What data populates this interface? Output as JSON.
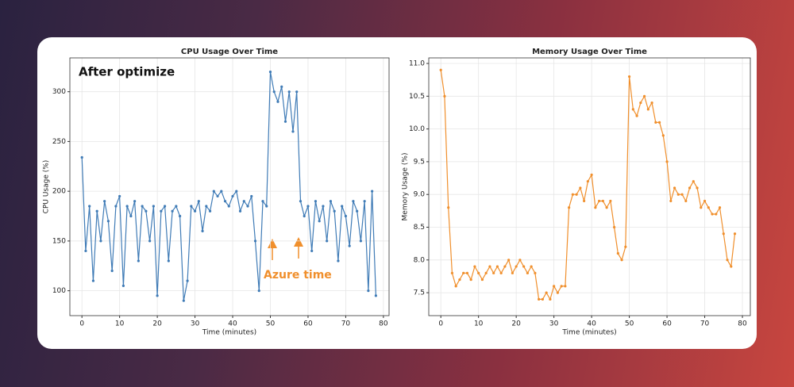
{
  "chart_data": [
    {
      "type": "line",
      "title": "CPU Usage Over Time",
      "x_label": "Time (minutes)",
      "y_label": "CPU Usage (%)",
      "annotations": [
        "After optimize",
        "Azure time"
      ],
      "x": [
        0,
        1,
        2,
        3,
        4,
        5,
        6,
        7,
        8,
        9,
        10,
        11,
        12,
        13,
        14,
        15,
        16,
        17,
        18,
        19,
        20,
        21,
        22,
        23,
        24,
        25,
        26,
        27,
        28,
        29,
        30,
        31,
        32,
        33,
        34,
        35,
        36,
        37,
        38,
        39,
        40,
        41,
        42,
        43,
        44,
        45,
        46,
        47,
        48,
        49,
        50,
        51,
        52,
        53,
        54,
        55,
        56,
        57,
        58,
        59,
        60,
        61,
        62,
        63,
        64,
        65,
        66,
        67,
        68,
        69,
        70,
        71,
        72,
        73,
        74,
        75,
        76,
        77,
        78
      ],
      "series": [
        {
          "name": "CPU Usage (%)",
          "color": "#3f7bb6",
          "values": [
            234,
            140,
            185,
            110,
            180,
            150,
            190,
            170,
            120,
            185,
            195,
            105,
            185,
            175,
            190,
            130,
            185,
            180,
            150,
            185,
            95,
            180,
            185,
            130,
            180,
            185,
            175,
            90,
            110,
            185,
            180,
            190,
            160,
            185,
            180,
            200,
            195,
            200,
            190,
            185,
            195,
            200,
            180,
            190,
            185,
            195,
            150,
            100,
            190,
            185,
            320,
            300,
            290,
            305,
            270,
            300,
            260,
            300,
            190,
            175,
            185,
            140,
            190,
            170,
            185,
            150,
            190,
            180,
            130,
            185,
            175,
            145,
            190,
            180,
            150,
            190,
            100,
            200,
            95
          ]
        }
      ],
      "xlim": [
        -3.2,
        81.5
      ],
      "ylim": [
        75,
        334
      ],
      "xticks": [
        0,
        10,
        20,
        30,
        40,
        50,
        60,
        70,
        80
      ],
      "yticks": [
        100,
        150,
        200,
        250,
        300
      ],
      "grid": true
    },
    {
      "type": "line",
      "title": "Memory Usage Over Time",
      "x_label": "Time (minutes)",
      "y_label": "Memory Usage (%)",
      "x": [
        0,
        1,
        2,
        3,
        4,
        5,
        6,
        7,
        8,
        9,
        10,
        11,
        12,
        13,
        14,
        15,
        16,
        17,
        18,
        19,
        20,
        21,
        22,
        23,
        24,
        25,
        26,
        27,
        28,
        29,
        30,
        31,
        32,
        33,
        34,
        35,
        36,
        37,
        38,
        39,
        40,
        41,
        42,
        43,
        44,
        45,
        46,
        47,
        48,
        49,
        50,
        51,
        52,
        53,
        54,
        55,
        56,
        57,
        58,
        59,
        60,
        61,
        62,
        63,
        64,
        65,
        66,
        67,
        68,
        69,
        70,
        71,
        72,
        73,
        74,
        75,
        76,
        77,
        78
      ],
      "series": [
        {
          "name": "Memory Usage (%)",
          "color": "#f08f2c",
          "values": [
            10.9,
            10.5,
            8.8,
            7.8,
            7.6,
            7.7,
            7.8,
            7.8,
            7.7,
            7.9,
            7.8,
            7.7,
            7.8,
            7.9,
            7.8,
            7.9,
            7.8,
            7.9,
            8.0,
            7.8,
            7.9,
            8.0,
            7.9,
            7.8,
            7.9,
            7.8,
            7.4,
            7.4,
            7.5,
            7.4,
            7.6,
            7.5,
            7.6,
            7.6,
            8.8,
            9.0,
            9.0,
            9.1,
            8.9,
            9.2,
            9.3,
            8.8,
            8.9,
            8.9,
            8.8,
            8.9,
            8.5,
            8.1,
            8.0,
            8.2,
            10.8,
            10.3,
            10.2,
            10.4,
            10.5,
            10.3,
            10.4,
            10.1,
            10.1,
            9.9,
            9.5,
            8.9,
            9.1,
            9.0,
            9.0,
            8.9,
            9.1,
            9.2,
            9.1,
            8.8,
            8.9,
            8.8,
            8.7,
            8.7,
            8.8,
            8.4,
            8.0,
            7.9,
            8.4
          ]
        }
      ],
      "xlim": [
        -3.2,
        82.1
      ],
      "ylim": [
        7.15,
        11.085
      ],
      "xticks": [
        0,
        10,
        20,
        30,
        40,
        50,
        60,
        70,
        80
      ],
      "yticks": [
        7.5,
        {
          "value": 8,
          "label": "8.0"
        },
        8.5,
        {
          "value": 9,
          "label": "9.0"
        },
        9.5,
        {
          "value": 10,
          "label": "10.0"
        },
        10.5,
        {
          "value": 11,
          "label": "11.0"
        }
      ],
      "grid": true
    }
  ]
}
